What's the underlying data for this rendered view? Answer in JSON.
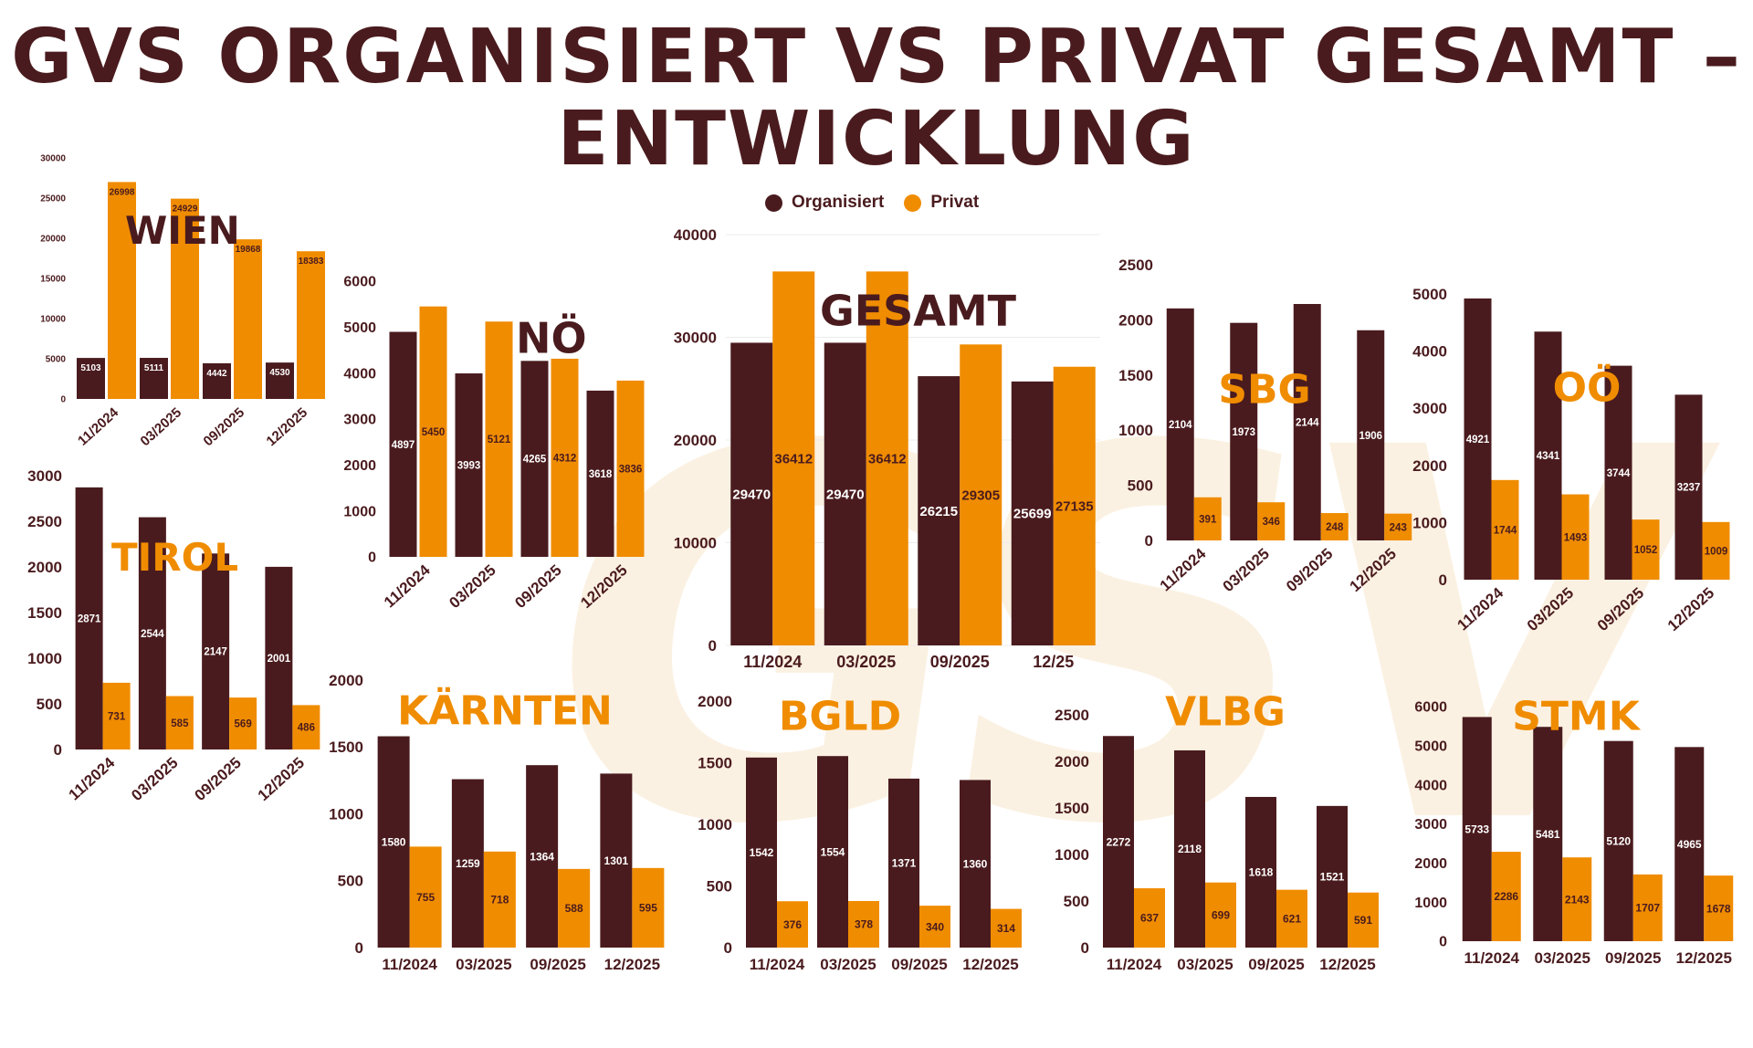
{
  "title_lines": [
    "GVS ORGANISIERT VS PRIVAT GESAMT –",
    "ENTWICKLUNG"
  ],
  "legend": [
    {
      "name": "Organisiert",
      "color": "#4a1b1e"
    },
    {
      "name": "Privat",
      "color": "#f08c00"
    }
  ],
  "colors": {
    "organisiert": "#4a1b1e",
    "privat": "#f08c00",
    "title_dark": "#4a1b1e",
    "title_orange": "#f08c00"
  },
  "chart_data": [
    {
      "type": "bar",
      "title": "WIEN",
      "categories": [
        "11/2024",
        "03/2025",
        "09/2025",
        "12/2025"
      ],
      "series": [
        {
          "name": "Organisiert",
          "values": [
            5103,
            5111,
            4442,
            4530
          ]
        },
        {
          "name": "Privat",
          "values": [
            26998,
            24929,
            19868,
            18383
          ]
        }
      ],
      "ylim": [
        0,
        30000
      ],
      "yticks": [
        0,
        5000,
        10000,
        15000,
        20000,
        25000,
        30000
      ]
    },
    {
      "type": "bar",
      "title": "NÖ",
      "categories": [
        "11/2024",
        "03/2025",
        "09/2025",
        "12/2025"
      ],
      "series": [
        {
          "name": "Organisiert",
          "values": [
            4897,
            3993,
            4265,
            3618
          ]
        },
        {
          "name": "Privat",
          "values": [
            5450,
            5121,
            4312,
            3836
          ]
        }
      ],
      "ylim": [
        0,
        6000
      ],
      "yticks": [
        0,
        1000,
        2000,
        3000,
        4000,
        5000,
        6000
      ]
    },
    {
      "type": "bar",
      "title": "GESAMT",
      "categories": [
        "11/2024",
        "03/2025",
        "09/2025",
        "12/25"
      ],
      "series": [
        {
          "name": "Organisiert",
          "values": [
            29470,
            29470,
            26215,
            25699
          ]
        },
        {
          "name": "Privat",
          "values": [
            36412,
            36412,
            29305,
            27135
          ]
        }
      ],
      "ylim": [
        0,
        40000
      ],
      "yticks": [
        0,
        10000,
        20000,
        30000,
        40000
      ],
      "grid": true
    },
    {
      "type": "bar",
      "title": "SBG",
      "categories": [
        "11/2024",
        "03/2025",
        "09/2025",
        "12/2025"
      ],
      "series": [
        {
          "name": "Organisiert",
          "values": [
            2104,
            1973,
            2144,
            1906
          ]
        },
        {
          "name": "Privat",
          "values": [
            391,
            346,
            248,
            243
          ]
        }
      ],
      "ylim": [
        0,
        2500
      ],
      "yticks": [
        0,
        500,
        1000,
        1500,
        2000,
        2500
      ]
    },
    {
      "type": "bar",
      "title": "OÖ",
      "categories": [
        "11/2024",
        "03/2025",
        "09/2025",
        "12/2025"
      ],
      "series": [
        {
          "name": "Organisiert",
          "values": [
            4921,
            4341,
            3744,
            3237
          ]
        },
        {
          "name": "Privat",
          "values": [
            1744,
            1493,
            1052,
            1009
          ]
        }
      ],
      "ylim": [
        0,
        5000
      ],
      "yticks": [
        0,
        1000,
        2000,
        3000,
        4000,
        5000
      ]
    },
    {
      "type": "bar",
      "title": "TIROL",
      "categories": [
        "11/2024",
        "03/2025",
        "09/2025",
        "12/2025"
      ],
      "series": [
        {
          "name": "Organisiert",
          "values": [
            2871,
            2544,
            2147,
            2001
          ]
        },
        {
          "name": "Privat",
          "values": [
            731,
            585,
            569,
            486
          ]
        }
      ],
      "ylim": [
        0,
        3000
      ],
      "yticks": [
        0,
        500,
        1000,
        1500,
        2000,
        2500,
        3000
      ]
    },
    {
      "type": "bar",
      "title": "KÄRNTEN",
      "categories": [
        "11/2024",
        "03/2025",
        "09/2025",
        "12/2025"
      ],
      "series": [
        {
          "name": "Organisiert",
          "values": [
            1580,
            1259,
            1364,
            1301
          ]
        },
        {
          "name": "Privat",
          "values": [
            755,
            718,
            588,
            595
          ]
        }
      ],
      "ylim": [
        0,
        2000
      ],
      "yticks": [
        0,
        500,
        1000,
        1500,
        2000
      ]
    },
    {
      "type": "bar",
      "title": "BGLD",
      "categories": [
        "11/2024",
        "03/2025",
        "09/2025",
        "12/2025"
      ],
      "series": [
        {
          "name": "Organisiert",
          "values": [
            1542,
            1554,
            1371,
            1360
          ]
        },
        {
          "name": "Privat",
          "values": [
            376,
            378,
            340,
            314
          ]
        }
      ],
      "ylim": [
        0,
        2000
      ],
      "yticks": [
        0,
        500,
        1000,
        1500,
        2000
      ]
    },
    {
      "type": "bar",
      "title": "VLBG",
      "categories": [
        "11/2024",
        "03/2025",
        "09/2025",
        "12/2025"
      ],
      "series": [
        {
          "name": "Organisiert",
          "values": [
            2272,
            2118,
            1618,
            1521
          ]
        },
        {
          "name": "Privat",
          "values": [
            637,
            699,
            621,
            591
          ]
        }
      ],
      "ylim": [
        0,
        2500
      ],
      "yticks": [
        0,
        500,
        1000,
        1500,
        2000,
        2500
      ]
    },
    {
      "type": "bar",
      "title": "STMK",
      "categories": [
        "11/2024",
        "03/2025",
        "09/2025",
        "12/2025"
      ],
      "series": [
        {
          "name": "Organisiert",
          "values": [
            5733,
            5481,
            5120,
            4965
          ]
        },
        {
          "name": "Privat",
          "values": [
            2286,
            2143,
            1707,
            1678
          ]
        }
      ],
      "ylim": [
        0,
        6000
      ],
      "yticks": [
        0,
        1000,
        2000,
        3000,
        4000,
        5000,
        6000
      ]
    }
  ]
}
